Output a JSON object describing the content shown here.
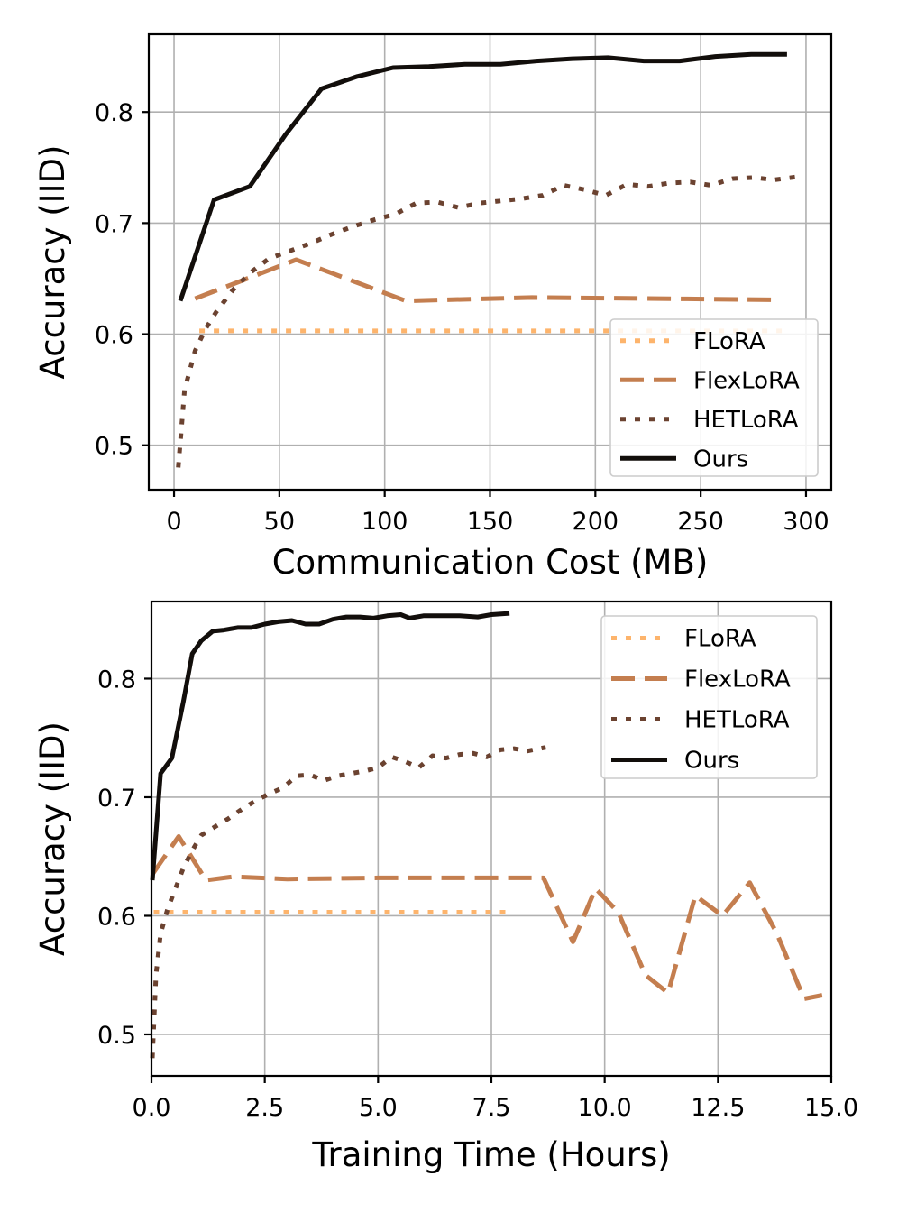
{
  "chart_data": [
    {
      "type": "line",
      "xlabel": "Communication Cost (MB)",
      "ylabel": "Accuracy (IID)",
      "xlim": [
        -12,
        312
      ],
      "ylim": [
        0.46,
        0.87
      ],
      "xticks": [
        0,
        50,
        100,
        150,
        200,
        250,
        300
      ],
      "xtick_labels": [
        "0",
        "50",
        "100",
        "150",
        "200",
        "250",
        "300"
      ],
      "yticks": [
        0.5,
        0.6,
        0.7,
        0.8
      ],
      "ytick_labels": [
        "0.5",
        "0.6",
        "0.7",
        "0.8"
      ],
      "grid": true,
      "legend_position": "bottom-right",
      "series": [
        {
          "name": "FLoRA",
          "style": "dotted",
          "color": "#fdb46c",
          "x": [
            12,
            290
          ],
          "y": [
            0.603,
            0.603
          ]
        },
        {
          "name": "FlexLoRA",
          "style": "dashed",
          "color": "#c47e4f",
          "x": [
            10,
            58,
            110,
            170,
            230,
            285
          ],
          "y": [
            0.632,
            0.667,
            0.63,
            0.633,
            0.632,
            0.631
          ]
        },
        {
          "name": "HETLoRA",
          "style": "dotted",
          "color": "#6b4230",
          "x": [
            2,
            5,
            10,
            15,
            20,
            28,
            36,
            45,
            55,
            65,
            75,
            85,
            95,
            105,
            115,
            125,
            135,
            145,
            155,
            165,
            175,
            185,
            195,
            205,
            215,
            225,
            235,
            245,
            255,
            265,
            275,
            285,
            297
          ],
          "y": [
            0.48,
            0.55,
            0.585,
            0.605,
            0.62,
            0.64,
            0.655,
            0.668,
            0.675,
            0.682,
            0.69,
            0.697,
            0.703,
            0.708,
            0.718,
            0.719,
            0.714,
            0.718,
            0.72,
            0.722,
            0.725,
            0.734,
            0.73,
            0.725,
            0.735,
            0.733,
            0.736,
            0.737,
            0.734,
            0.74,
            0.741,
            0.739,
            0.742
          ]
        },
        {
          "name": "Ours",
          "style": "solid",
          "color": "#120e0b",
          "x": [
            3,
            19,
            36,
            53,
            70,
            87,
            104,
            121,
            138,
            155,
            172,
            189,
            206,
            223,
            240,
            257,
            274,
            291
          ],
          "y": [
            0.63,
            0.721,
            0.733,
            0.78,
            0.821,
            0.832,
            0.84,
            0.841,
            0.843,
            0.843,
            0.846,
            0.848,
            0.849,
            0.846,
            0.846,
            0.85,
            0.852,
            0.852
          ]
        }
      ]
    },
    {
      "type": "line",
      "xlabel": "Training Time (Hours)",
      "ylabel": "Accuracy (IID)",
      "xlim": [
        0,
        15
      ],
      "ylim": [
        0.465,
        0.865
      ],
      "xticks": [
        0,
        2.5,
        5,
        7.5,
        10,
        12.5,
        15
      ],
      "xtick_labels": [
        "0.0",
        "2.5",
        "5.0",
        "7.5",
        "10.0",
        "12.5",
        "15.0"
      ],
      "yticks": [
        0.5,
        0.6,
        0.7,
        0.8
      ],
      "ytick_labels": [
        "0.5",
        "0.6",
        "0.7",
        "0.8"
      ],
      "grid": true,
      "legend_position": "top-right",
      "series": [
        {
          "name": "FLoRA",
          "style": "dotted",
          "color": "#fdb46c",
          "x": [
            0.05,
            8.0
          ],
          "y": [
            0.603,
            0.603
          ]
        },
        {
          "name": "FlexLoRA",
          "style": "dashed",
          "color": "#c47e4f",
          "x": [
            0.02,
            0.6,
            1.2,
            1.8,
            3.0,
            5.0,
            7.0,
            8.65,
            9.3,
            9.8,
            10.3,
            10.9,
            11.4,
            12.0,
            12.6,
            13.2,
            13.8,
            14.4,
            14.8
          ],
          "y": [
            0.635,
            0.667,
            0.63,
            0.633,
            0.631,
            0.632,
            0.632,
            0.632,
            0.578,
            0.623,
            0.603,
            0.55,
            0.535,
            0.617,
            0.6,
            0.628,
            0.585,
            0.53,
            0.533
          ]
        },
        {
          "name": "HETLoRA",
          "style": "dotted",
          "color": "#6b4230",
          "x": [
            0.02,
            0.1,
            0.2,
            0.35,
            0.5,
            0.7,
            0.9,
            1.1,
            1.4,
            1.7,
            2.0,
            2.3,
            2.6,
            2.9,
            3.2,
            3.5,
            3.8,
            4.1,
            4.4,
            4.7,
            5.0,
            5.3,
            5.6,
            5.9,
            6.2,
            6.5,
            6.8,
            7.1,
            7.4,
            7.7,
            8.0,
            8.3,
            8.7
          ],
          "y": [
            0.48,
            0.55,
            0.585,
            0.605,
            0.62,
            0.64,
            0.655,
            0.668,
            0.675,
            0.682,
            0.69,
            0.697,
            0.703,
            0.708,
            0.718,
            0.719,
            0.714,
            0.718,
            0.72,
            0.722,
            0.725,
            0.734,
            0.73,
            0.725,
            0.735,
            0.733,
            0.736,
            0.737,
            0.734,
            0.74,
            0.741,
            0.739,
            0.742
          ]
        },
        {
          "name": "Ours",
          "style": "solid",
          "color": "#120e0b",
          "x": [
            0.02,
            0.2,
            0.45,
            0.7,
            0.9,
            1.1,
            1.35,
            1.6,
            1.9,
            2.2,
            2.5,
            2.8,
            3.1,
            3.4,
            3.7,
            4.0,
            4.3,
            4.6,
            4.9,
            5.2,
            5.5,
            5.7,
            6.0,
            6.4,
            6.8,
            7.2,
            7.5,
            7.9
          ],
          "y": [
            0.63,
            0.72,
            0.733,
            0.78,
            0.821,
            0.832,
            0.84,
            0.841,
            0.843,
            0.843,
            0.846,
            0.848,
            0.849,
            0.846,
            0.846,
            0.85,
            0.852,
            0.852,
            0.851,
            0.853,
            0.854,
            0.851,
            0.853,
            0.853,
            0.853,
            0.852,
            0.854,
            0.855
          ]
        }
      ]
    }
  ]
}
